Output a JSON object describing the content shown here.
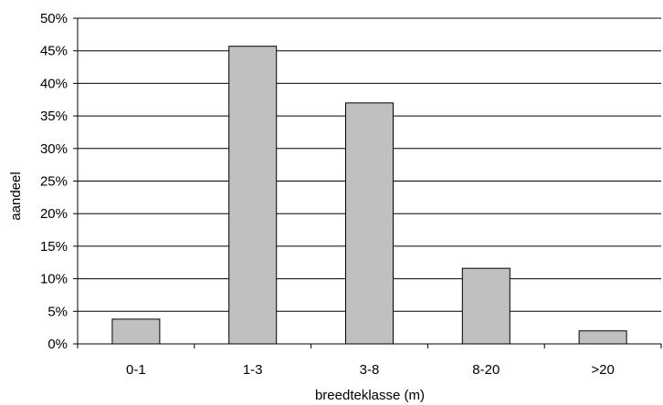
{
  "chart_data": {
    "type": "bar",
    "categories": [
      "0-1",
      "1-3",
      "3-8",
      "8-20",
      ">20"
    ],
    "values": [
      3.8,
      45.7,
      37.0,
      11.6,
      2.0
    ],
    "value_unit": "%",
    "xlabel": "breedteklasse (m)",
    "ylabel": "aandeel",
    "ylim": [
      0,
      50
    ],
    "y_ticks": [
      0,
      5,
      10,
      15,
      20,
      25,
      30,
      35,
      40,
      45,
      50
    ],
    "y_tick_labels": [
      "0%",
      "5%",
      "10%",
      "15%",
      "20%",
      "25%",
      "30%",
      "35%",
      "40%",
      "45%",
      "50%"
    ],
    "grid": "horizontal",
    "legend": "none",
    "bar_color": "#c0c0c0",
    "bar_edge_color": "#000000"
  }
}
